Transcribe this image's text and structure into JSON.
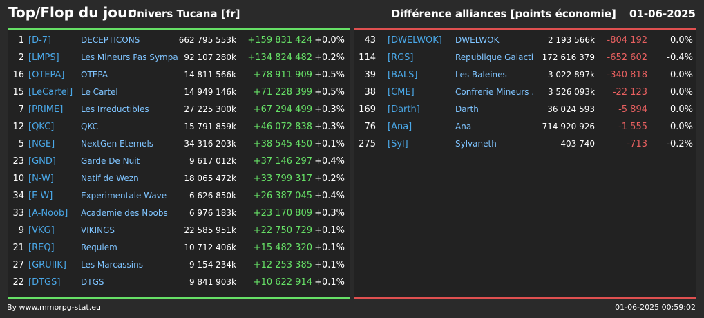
{
  "header": {
    "title": "Top/Flop du jour",
    "universe": "Univers Tucana [fr]",
    "category": "Différence alliances [points économie]",
    "date": "01-06-2025"
  },
  "colors": {
    "positive": "#66e066",
    "negative": "#e86060",
    "tag": "#4aa8e8",
    "name": "#7fc4ff",
    "top_bar": "#66e066",
    "flop_bar": "#e05050"
  },
  "top": [
    {
      "rank": "1",
      "tag": "[D-7]",
      "name": "DECEPTICONS",
      "points": "662 795 553k",
      "diff": "+159 831 424",
      "pct": "+0.0%"
    },
    {
      "rank": "2",
      "tag": "[LMPS]",
      "name": "Les Mineurs Pas Sympa",
      "points": "92 107 280k",
      "diff": "+134 824 482",
      "pct": "+0.2%"
    },
    {
      "rank": "16",
      "tag": "[OTEPA]",
      "name": "OTEPA",
      "points": "14 811 566k",
      "diff": "+78 911 909",
      "pct": "+0.5%"
    },
    {
      "rank": "15",
      "tag": "[LeCartel]",
      "name": "Le Cartel",
      "points": "14 949 146k",
      "diff": "+71 228 399",
      "pct": "+0.5%"
    },
    {
      "rank": "7",
      "tag": "[PRIME]",
      "name": "Les Irreductibles",
      "points": "27 225 300k",
      "diff": "+67 294 499",
      "pct": "+0.3%"
    },
    {
      "rank": "12",
      "tag": "[QKC]",
      "name": "QKC",
      "points": "15 791 859k",
      "diff": "+46 072 838",
      "pct": "+0.3%"
    },
    {
      "rank": "5",
      "tag": "[NGE]",
      "name": "NextGen Eternels",
      "points": "34 316 203k",
      "diff": "+38 545 450",
      "pct": "+0.1%"
    },
    {
      "rank": "23",
      "tag": "[GND]",
      "name": "Garde De Nuit",
      "points": "9 617 012k",
      "diff": "+37 146 297",
      "pct": "+0.4%"
    },
    {
      "rank": "10",
      "tag": "[N-W]",
      "name": "Natif de Wezn",
      "points": "18 065 472k",
      "diff": "+33 799 317",
      "pct": "+0.2%"
    },
    {
      "rank": "34",
      "tag": "[E W]",
      "name": "Experimentale Wave",
      "points": "6 626 850k",
      "diff": "+26 387 045",
      "pct": "+0.4%"
    },
    {
      "rank": "33",
      "tag": "[A-Noob]",
      "name": "Academie des Noobs",
      "points": "6 976 183k",
      "diff": "+23 170 809",
      "pct": "+0.3%"
    },
    {
      "rank": "9",
      "tag": "[VKG]",
      "name": "VIKINGS",
      "points": "22 585 951k",
      "diff": "+22 750 729",
      "pct": "+0.1%"
    },
    {
      "rank": "21",
      "tag": "[REQ]",
      "name": "Requiem",
      "points": "10 712 406k",
      "diff": "+15 482 320",
      "pct": "+0.1%"
    },
    {
      "rank": "27",
      "tag": "[GRUIIK]",
      "name": "Les Marcassins",
      "points": "9 154 234k",
      "diff": "+12 253 385",
      "pct": "+0.1%"
    },
    {
      "rank": "22",
      "tag": "[DTGS]",
      "name": "DTGS",
      "points": "9 841 903k",
      "diff": "+10 622 914",
      "pct": "+0.1%"
    }
  ],
  "flop": [
    {
      "rank": "43",
      "tag": "[DWELWOK]",
      "name": "DWELWOK",
      "points": "2 193 566k",
      "diff": "-804 192",
      "pct": "0.0%"
    },
    {
      "rank": "114",
      "tag": "[RGS]",
      "name": "Republique Galacti...",
      "points": "172 616 379",
      "diff": "-652 602",
      "pct": "-0.4%"
    },
    {
      "rank": "39",
      "tag": "[BALS]",
      "name": "Les Baleines",
      "points": "3 022 897k",
      "diff": "-340 818",
      "pct": "0.0%"
    },
    {
      "rank": "38",
      "tag": "[CME]",
      "name": "Confrerie Mineurs ...",
      "points": "3 526 093k",
      "diff": "-22 123",
      "pct": "0.0%"
    },
    {
      "rank": "169",
      "tag": "[Darth]",
      "name": "Darth",
      "points": "36 024 593",
      "diff": "-5 894",
      "pct": "0.0%"
    },
    {
      "rank": "76",
      "tag": "[Ana]",
      "name": "Ana",
      "points": "714 920 926",
      "diff": "-1 555",
      "pct": "0.0%"
    },
    {
      "rank": "275",
      "tag": "[Syl]",
      "name": "Sylvaneth",
      "points": "403 740",
      "diff": "-713",
      "pct": "-0.2%"
    }
  ],
  "footer": {
    "source": "By www.mmorpg-stat.eu",
    "timestamp": "01-06-2025 00:59:02"
  }
}
